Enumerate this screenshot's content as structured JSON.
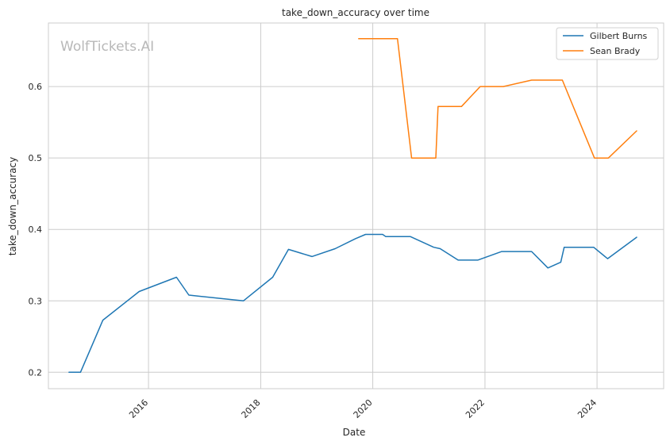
{
  "chart_data": {
    "type": "line",
    "title": "take_down_accuracy over time",
    "xlabel": "Date",
    "ylabel": "take_down_accuracy",
    "watermark": "WolfTickets.AI",
    "x_ticks": [
      "2016",
      "2018",
      "2020",
      "2022",
      "2024"
    ],
    "y_ticks": [
      "0.2",
      "0.3",
      "0.4",
      "0.5",
      "0.6"
    ],
    "xlim": [
      "2014-03-20",
      "2025-03-10"
    ],
    "ylim": [
      0.177,
      0.689
    ],
    "grid": true,
    "legend_position": "top-right",
    "series": [
      {
        "name": "Gilbert Burns",
        "color": "#1f77b4",
        "points": [
          [
            "2014-08-01",
            0.2
          ],
          [
            "2014-10-15",
            0.2
          ],
          [
            "2015-03-10",
            0.273
          ],
          [
            "2015-11-01",
            0.313
          ],
          [
            "2016-07-01",
            0.333
          ],
          [
            "2016-09-20",
            0.308
          ],
          [
            "2017-09-10",
            0.3
          ],
          [
            "2018-03-20",
            0.333
          ],
          [
            "2018-07-01",
            0.372
          ],
          [
            "2018-12-01",
            0.362
          ],
          [
            "2019-05-01",
            0.373
          ],
          [
            "2019-09-10",
            0.387
          ],
          [
            "2019-11-15",
            0.393
          ],
          [
            "2020-03-05",
            0.393
          ],
          [
            "2020-03-25",
            0.39
          ],
          [
            "2020-09-01",
            0.39
          ],
          [
            "2021-02-01",
            0.375
          ],
          [
            "2021-03-15",
            0.373
          ],
          [
            "2021-07-10",
            0.357
          ],
          [
            "2021-11-15",
            0.357
          ],
          [
            "2022-04-20",
            0.369
          ],
          [
            "2022-11-01",
            0.369
          ],
          [
            "2023-02-15",
            0.346
          ],
          [
            "2023-05-10",
            0.354
          ],
          [
            "2023-06-01",
            0.375
          ],
          [
            "2023-12-10",
            0.375
          ],
          [
            "2024-03-10",
            0.359
          ],
          [
            "2024-09-15",
            0.389
          ]
        ]
      },
      {
        "name": "Sean Brady",
        "color": "#ff7f0e",
        "points": [
          [
            "2019-10-01",
            0.667
          ],
          [
            "2020-06-10",
            0.667
          ],
          [
            "2020-09-10",
            0.5
          ],
          [
            "2021-02-15",
            0.5
          ],
          [
            "2021-03-01",
            0.572
          ],
          [
            "2021-08-01",
            0.572
          ],
          [
            "2021-12-01",
            0.6
          ],
          [
            "2022-05-01",
            0.6
          ],
          [
            "2022-11-01",
            0.609
          ],
          [
            "2023-05-20",
            0.609
          ],
          [
            "2023-12-15",
            0.5
          ],
          [
            "2024-03-15",
            0.5
          ],
          [
            "2024-09-15",
            0.538
          ]
        ]
      }
    ]
  }
}
